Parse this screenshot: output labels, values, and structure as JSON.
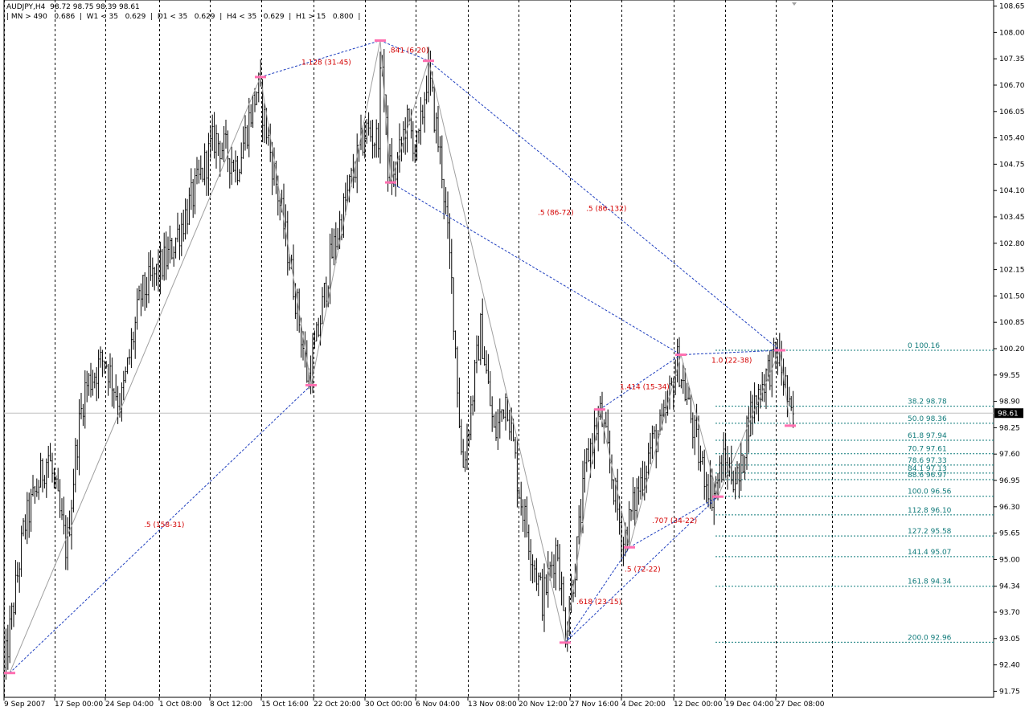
{
  "header": {
    "symbol_title": "AUDJPY,H4  98.72 98.75 98.39 98.61",
    "indicator_line": "| MN > 490   0.686  |  W1 < 35   0.629  |  D1 < 35   0.629  |  H4 < 35   0.629  |  H1 > 15   0.800  |"
  },
  "chart_data": {
    "type": "candlestick",
    "symbol": "AUDJPY",
    "timeframe": "H4",
    "ohlc_last": {
      "open": 98.72,
      "high": 98.75,
      "low": 98.39,
      "close": 98.61
    },
    "current_price_label": "98.61",
    "y_range": [
      91.6,
      108.8
    ],
    "y_ticks": [
      "108.65",
      "108.00",
      "107.35",
      "106.70",
      "106.05",
      "105.40",
      "104.75",
      "104.10",
      "103.45",
      "102.80",
      "102.15",
      "101.50",
      "100.85",
      "100.20",
      "99.55",
      "98.90",
      "98.25",
      "97.60",
      "96.95",
      "96.30",
      "95.65",
      "95.00",
      "94.34",
      "93.70",
      "93.05",
      "92.40",
      "91.75"
    ],
    "x_range": [
      0,
      1231
    ],
    "x_ticks": [
      {
        "label": "9 Sep 2007",
        "x": 0
      },
      {
        "label": "17 Sep 00:00",
        "x": 63
      },
      {
        "label": "24 Sep 04:00",
        "x": 126
      },
      {
        "label": "1 Oct 08:00",
        "x": 193
      },
      {
        "label": "8 Oct 12:00",
        "x": 256
      },
      {
        "label": "15 Oct 16:00",
        "x": 320
      },
      {
        "label": "22 Oct 20:00",
        "x": 385
      },
      {
        "label": "30 Oct 00:00",
        "x": 449
      },
      {
        "label": "6 Nov 04:00",
        "x": 512
      },
      {
        "label": "13 Nov 08:00",
        "x": 577
      },
      {
        "label": "20 Nov 12:00",
        "x": 640
      },
      {
        "label": "27 Nov 16:00",
        "x": 704
      },
      {
        "label": "4 Dec 20:00",
        "x": 768
      },
      {
        "label": "12 Dec 00:00",
        "x": 833
      },
      {
        "label": "19 Dec 04:00",
        "x": 897
      },
      {
        "label": "27 Dec 08:00",
        "x": 960
      }
    ],
    "anchors": [
      [
        0,
        92.2
      ],
      [
        25,
        95.8
      ],
      [
        55,
        97.6
      ],
      [
        78,
        95.2
      ],
      [
        90,
        97.8
      ],
      [
        100,
        99.2
      ],
      [
        125,
        100.0
      ],
      [
        145,
        98.8
      ],
      [
        170,
        101.5
      ],
      [
        205,
        102.5
      ],
      [
        240,
        104.2
      ],
      [
        262,
        105.4
      ],
      [
        290,
        104.7
      ],
      [
        316,
        106.7
      ],
      [
        330,
        105.2
      ],
      [
        350,
        103.0
      ],
      [
        365,
        101.2
      ],
      [
        378,
        99.4
      ],
      [
        390,
        100.5
      ],
      [
        405,
        102.3
      ],
      [
        430,
        104.2
      ],
      [
        450,
        105.6
      ],
      [
        465,
        105.3
      ],
      [
        470,
        107.6
      ],
      [
        477,
        104.8
      ],
      [
        485,
        104.3
      ],
      [
        500,
        105.8
      ],
      [
        515,
        105.1
      ],
      [
        527,
        107.1
      ],
      [
        545,
        104.6
      ],
      [
        558,
        101.5
      ],
      [
        570,
        97.2
      ],
      [
        580,
        98.6
      ],
      [
        593,
        100.7
      ],
      [
        610,
        98.0
      ],
      [
        625,
        99.1
      ],
      [
        640,
        96.8
      ],
      [
        655,
        95.3
      ],
      [
        670,
        94.0
      ],
      [
        688,
        95.4
      ],
      [
        698,
        93.2
      ],
      [
        712,
        95.1
      ],
      [
        725,
        97.5
      ],
      [
        742,
        98.6
      ],
      [
        755,
        97.2
      ],
      [
        770,
        95.4
      ],
      [
        787,
        96.6
      ],
      [
        805,
        97.8
      ],
      [
        820,
        98.3
      ],
      [
        838,
        99.9
      ],
      [
        850,
        98.9
      ],
      [
        866,
        97.4
      ],
      [
        882,
        96.6
      ],
      [
        895,
        97.4
      ],
      [
        915,
        96.9
      ],
      [
        925,
        98.4
      ],
      [
        942,
        99.3
      ],
      [
        962,
        100.1
      ],
      [
        972,
        99.3
      ],
      [
        978,
        98.4
      ],
      [
        983,
        98.6
      ]
    ],
    "pivots": [
      {
        "x": 7,
        "price": 92.2
      },
      {
        "x": 319,
        "price": 106.9
      },
      {
        "x": 382,
        "price": 99.3
      },
      {
        "x": 468,
        "price": 107.8
      },
      {
        "x": 481,
        "price": 104.3
      },
      {
        "x": 528,
        "price": 107.3
      },
      {
        "x": 698,
        "price": 92.95
      },
      {
        "x": 741,
        "price": 98.7
      },
      {
        "x": 778,
        "price": 95.3
      },
      {
        "x": 842,
        "price": 100.05
      },
      {
        "x": 888,
        "price": 96.55
      },
      {
        "x": 965,
        "price": 100.16
      },
      {
        "x": 978,
        "price": 98.3
      }
    ],
    "zigzag": [
      [
        7,
        92.2
      ],
      [
        319,
        106.9
      ],
      [
        382,
        99.3
      ],
      [
        468,
        107.8
      ],
      [
        481,
        104.3
      ],
      [
        528,
        107.3
      ],
      [
        698,
        92.95
      ],
      [
        741,
        98.7
      ],
      [
        778,
        95.3
      ],
      [
        842,
        100.05
      ],
      [
        888,
        96.55
      ],
      [
        965,
        100.16
      ],
      [
        978,
        98.3
      ]
    ],
    "ratio_lines": [
      {
        "from": [
          7,
          92.2
        ],
        "to": [
          382,
          99.3
        ],
        "label": ".5 (158-31)",
        "lx": 174,
        "ly": 95.8
      },
      {
        "from": [
          319,
          106.9
        ],
        "to": [
          468,
          107.8
        ],
        "label": "1.128 (31-45)",
        "lx": 370,
        "ly": 107.2
      },
      {
        "from": [
          468,
          107.8
        ],
        "to": [
          528,
          107.3
        ],
        "label": ".841 (6-20)",
        "lx": 478,
        "ly": 107.5
      },
      {
        "from": [
          481,
          104.3
        ],
        "to": [
          842,
          100.05
        ],
        "label": ".5 (86-72)",
        "lx": 664,
        "ly": 103.5
      },
      {
        "from": [
          528,
          107.3
        ],
        "to": [
          965,
          100.16
        ],
        "label": ".5 (86-132)",
        "lx": 724,
        "ly": 103.6
      },
      {
        "from": [
          741,
          98.7
        ],
        "to": [
          842,
          100.05
        ],
        "label": "1.414 (15-34)",
        "lx": 766,
        "ly": 99.2
      },
      {
        "from": [
          842,
          100.05
        ],
        "to": [
          965,
          100.16
        ],
        "label": "1.0 (22-38)",
        "lx": 880,
        "ly": 99.85
      },
      {
        "from": [
          698,
          92.95
        ],
        "to": [
          778,
          95.3
        ],
        "label": ".618 (23-15)",
        "lx": 712,
        "ly": 93.9
      },
      {
        "from": [
          698,
          92.95
        ],
        "to": [
          888,
          96.55
        ],
        "label": ".5 (72-22)",
        "lx": 772,
        "ly": 94.7
      },
      {
        "from": [
          778,
          95.3
        ],
        "to": [
          888,
          96.55
        ],
        "label": ".707 (34-22)",
        "lx": 806,
        "ly": 95.9
      }
    ],
    "fib_levels": [
      {
        "label": "0  100.16",
        "price": 100.16
      },
      {
        "label": "38.2  98.78",
        "price": 98.78
      },
      {
        "label": "50.0  98.36",
        "price": 98.36
      },
      {
        "label": "61.8  97.94",
        "price": 97.94
      },
      {
        "label": "70.7  97.61",
        "price": 97.61
      },
      {
        "label": "78.6  97.33",
        "price": 97.33
      },
      {
        "label": "84.1  97.13",
        "price": 97.13
      },
      {
        "label": "88.6  96.97",
        "price": 96.97
      },
      {
        "label": "100.0  96.56",
        "price": 96.56
      },
      {
        "label": "112.8  96.10",
        "price": 96.1
      },
      {
        "label": "127.2  95.58",
        "price": 95.58
      },
      {
        "label": "141.4  95.07",
        "price": 95.07
      },
      {
        "label": "161.8  94.34",
        "price": 94.34
      },
      {
        "label": "200.0  92.96",
        "price": 92.96
      }
    ],
    "fib_start_x": 885,
    "vertical_separators_x": [
      0,
      63,
      126,
      193,
      256,
      320,
      385,
      449,
      512,
      577,
      640,
      704,
      768,
      833,
      897,
      960,
      1030
    ],
    "grid": false,
    "colors": {
      "candles": "#000000",
      "zigzag": "#a0a0a0",
      "ratio_lines": "#1f3fbf",
      "ratio_labels": "#d40000",
      "fib_lines": "#0f7a7a",
      "pivot_markers": "#ff6fb0",
      "price_line": "#c0c0c0",
      "separators": "#000000"
    }
  }
}
